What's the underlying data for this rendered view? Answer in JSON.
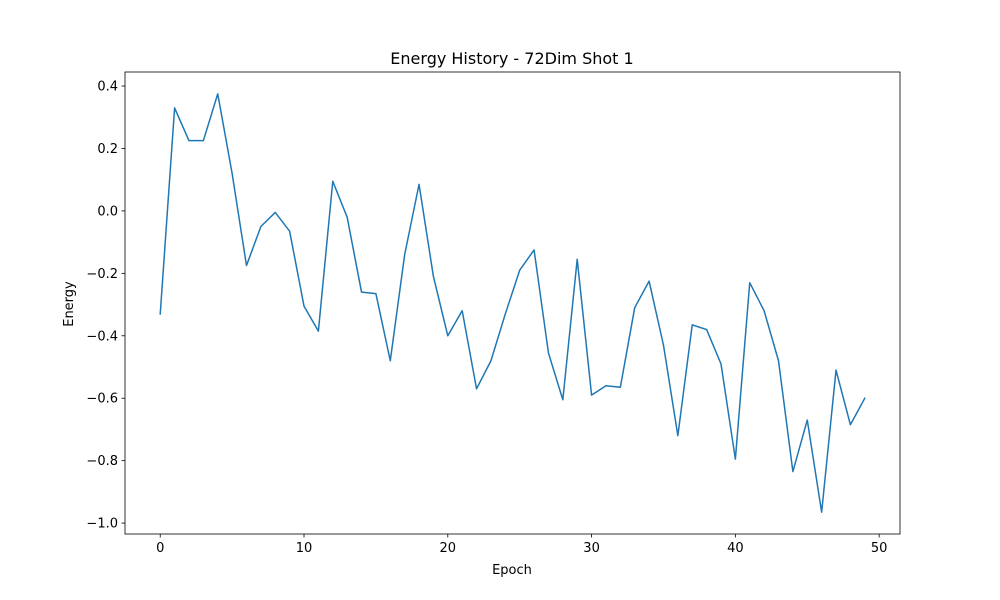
{
  "chart_data": {
    "type": "line",
    "title": "Energy History - 72Dim Shot 1",
    "xlabel": "Epoch",
    "ylabel": "Energy",
    "xlim": [
      -2.45,
      51.45
    ],
    "ylim": [
      -1.035,
      0.445
    ],
    "xticks": [
      0,
      10,
      20,
      30,
      40,
      50
    ],
    "yticks": [
      0.4,
      0.2,
      0.0,
      -0.2,
      -0.4,
      -0.6,
      -0.8,
      -1.0
    ],
    "xtick_labels": [
      "0",
      "10",
      "20",
      "30",
      "40",
      "50"
    ],
    "ytick_labels": [
      "0.4",
      "0.2",
      "0.0",
      "−0.2",
      "−0.4",
      "−0.6",
      "−0.8",
      "−1.0"
    ],
    "grid": false,
    "series": [
      {
        "color": "#1f77b4",
        "x": [
          0,
          1,
          2,
          3,
          4,
          5,
          6,
          7,
          8,
          9,
          10,
          11,
          12,
          13,
          14,
          15,
          16,
          17,
          18,
          19,
          20,
          21,
          22,
          23,
          24,
          25,
          26,
          27,
          28,
          29,
          30,
          31,
          32,
          33,
          34,
          35,
          36,
          37,
          38,
          39,
          40,
          41,
          42,
          43,
          44,
          45,
          46,
          47,
          48,
          49
        ],
        "y": [
          -0.33,
          0.33,
          0.225,
          0.225,
          0.375,
          0.12,
          -0.175,
          -0.05,
          -0.005,
          -0.065,
          -0.305,
          -0.385,
          0.095,
          -0.02,
          -0.26,
          -0.265,
          -0.48,
          -0.14,
          0.085,
          -0.21,
          -0.4,
          -0.32,
          -0.57,
          -0.48,
          -0.33,
          -0.19,
          -0.125,
          -0.455,
          -0.605,
          -0.155,
          -0.59,
          -0.56,
          -0.565,
          -0.31,
          -0.225,
          -0.43,
          -0.72,
          -0.365,
          -0.38,
          -0.49,
          -0.795,
          -0.23,
          -0.32,
          -0.48,
          -0.835,
          -0.67,
          -0.965,
          -0.51,
          -0.685,
          -0.6
        ]
      }
    ]
  }
}
